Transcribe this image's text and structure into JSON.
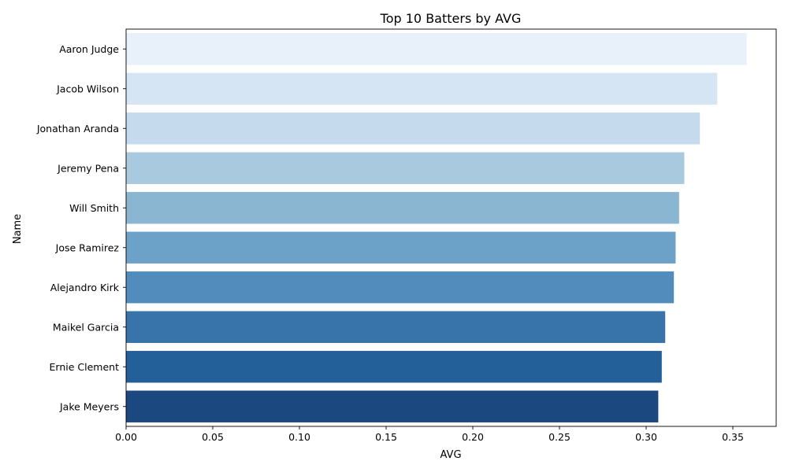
{
  "chart_data": {
    "type": "bar",
    "orientation": "horizontal",
    "title": "Top 10 Batters by AVG",
    "xlabel": "AVG",
    "ylabel": "Name",
    "xlim": [
      0,
      0.375
    ],
    "xticks": [
      "0.00",
      "0.05",
      "0.10",
      "0.15",
      "0.20",
      "0.25",
      "0.30",
      "0.35"
    ],
    "categories": [
      "Aaron Judge",
      "Jacob Wilson",
      "Jonathan Aranda",
      "Jeremy Pena",
      "Will Smith",
      "Jose Ramirez",
      "Alejandro Kirk",
      "Maikel Garcia",
      "Ernie Clement",
      "Jake Meyers"
    ],
    "values": [
      0.358,
      0.341,
      0.331,
      0.322,
      0.319,
      0.317,
      0.316,
      0.311,
      0.309,
      0.307
    ],
    "colors": [
      "#e8f0fa",
      "#d6e5f3",
      "#c5daec",
      "#a9c9de",
      "#8bb6d2",
      "#6da2c8",
      "#518cbc",
      "#3873a9",
      "#235f98",
      "#1b497f"
    ],
    "grid": false,
    "legend": "none"
  }
}
